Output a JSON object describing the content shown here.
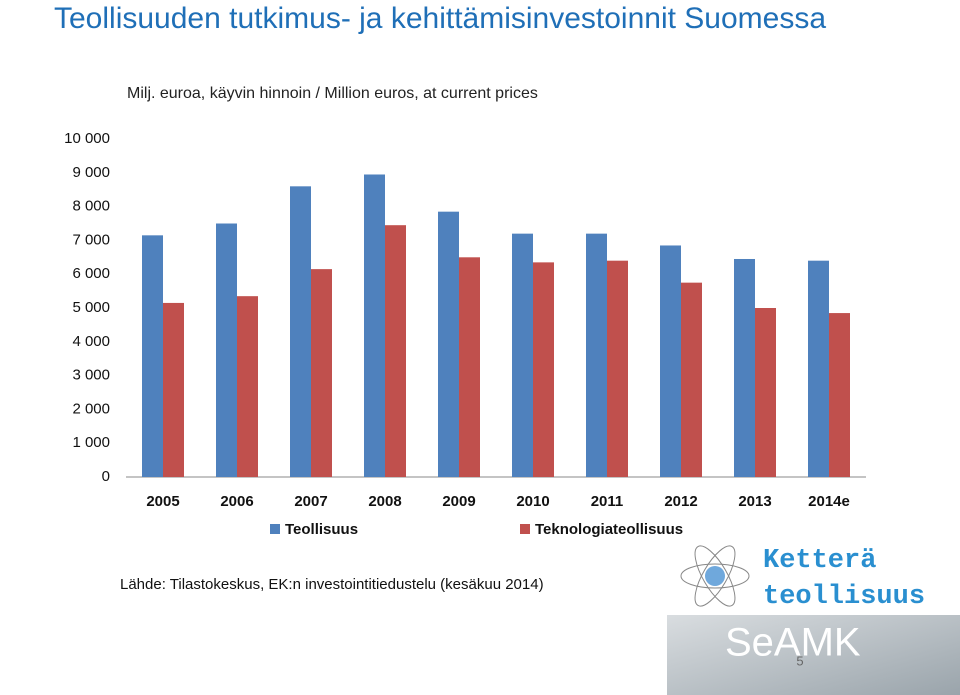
{
  "title": "Teollisuuden tutkimus- ja kehittämisinvestoinnit Suomessa",
  "chart_data": {
    "type": "bar",
    "subtitle": "Milj. euroa, käyvin hinnoin / Million euros, at current prices",
    "categories": [
      "2005",
      "2006",
      "2007",
      "2008",
      "2009",
      "2010",
      "2011",
      "2012",
      "2013",
      "2014e"
    ],
    "series": [
      {
        "name": "Teollisuus",
        "color": "#4f81bd",
        "values": [
          7150,
          7500,
          8600,
          8950,
          7850,
          7200,
          7200,
          6850,
          6450,
          6400
        ]
      },
      {
        "name": "Teknologiateollisuus",
        "color": "#c0504d",
        "values": [
          5150,
          5350,
          6150,
          7450,
          6500,
          6350,
          6400,
          5750,
          5000,
          4850
        ]
      }
    ],
    "ylim": [
      0,
      10000
    ],
    "yticks": [
      0,
      {
        "value": 1000,
        "label": "1 000"
      },
      {
        "value": 2000,
        "label": "2 000"
      },
      {
        "value": 3000,
        "label": "3 000"
      },
      {
        "value": 4000,
        "label": "4 000"
      },
      {
        "value": 5000,
        "label": "5 000"
      },
      {
        "value": 6000,
        "label": "6 000"
      },
      {
        "value": 7000,
        "label": "7 000"
      },
      {
        "value": 8000,
        "label": "8 000"
      },
      {
        "value": 9000,
        "label": "9 000"
      },
      {
        "value": 10000,
        "label": "10 000"
      }
    ],
    "grid": false,
    "legend": "bottom"
  },
  "source": "Lähde: Tilastokeskus, EK:n investointitiedustelu (kesäkuu 2014)",
  "logo_text": [
    "Ketterä",
    "teollisuus",
    "SeAMK"
  ],
  "page_number": "5"
}
